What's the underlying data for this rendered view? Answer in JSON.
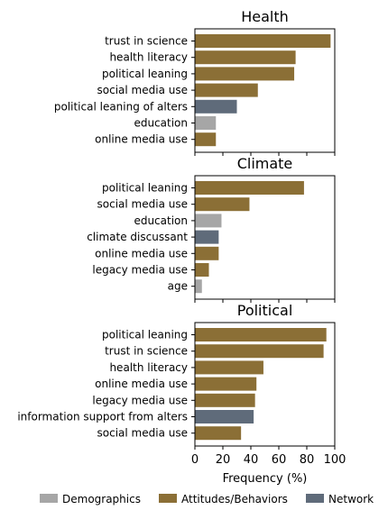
{
  "colors": {
    "Demographics": "#a6a6a6",
    "Attitudes/Behaviors": "#8b6f36",
    "Network": "#5f6b7a"
  },
  "legend": [
    "Demographics",
    "Attitudes/Behaviors",
    "Network"
  ],
  "xlabel": "Frequency (%)",
  "xticks": [
    "0",
    "20",
    "40",
    "60",
    "80",
    "100"
  ],
  "chart_data": [
    {
      "type": "bar",
      "title": "Health",
      "xlim": [
        0,
        100
      ],
      "bars": [
        {
          "label": "trust in science",
          "value": 97,
          "group": "Attitudes/Behaviors"
        },
        {
          "label": "health literacy",
          "value": 72,
          "group": "Attitudes/Behaviors"
        },
        {
          "label": "political leaning",
          "value": 71,
          "group": "Attitudes/Behaviors"
        },
        {
          "label": "social media use",
          "value": 45,
          "group": "Attitudes/Behaviors"
        },
        {
          "label": "political leaning of alters",
          "value": 30,
          "group": "Network"
        },
        {
          "label": "education",
          "value": 15,
          "group": "Demographics"
        },
        {
          "label": "online media use",
          "value": 15,
          "group": "Attitudes/Behaviors"
        }
      ]
    },
    {
      "type": "bar",
      "title": "Climate",
      "xlim": [
        0,
        100
      ],
      "bars": [
        {
          "label": "political leaning",
          "value": 78,
          "group": "Attitudes/Behaviors"
        },
        {
          "label": "social media use",
          "value": 39,
          "group": "Attitudes/Behaviors"
        },
        {
          "label": "education",
          "value": 19,
          "group": "Demographics"
        },
        {
          "label": "climate discussant",
          "value": 17,
          "group": "Network"
        },
        {
          "label": "online media use",
          "value": 17,
          "group": "Attitudes/Behaviors"
        },
        {
          "label": "legacy media use",
          "value": 10,
          "group": "Attitudes/Behaviors"
        },
        {
          "label": "age",
          "value": 5,
          "group": "Demographics"
        }
      ]
    },
    {
      "type": "bar",
      "title": "Political",
      "xlim": [
        0,
        100
      ],
      "bars": [
        {
          "label": "political leaning",
          "value": 94,
          "group": "Attitudes/Behaviors"
        },
        {
          "label": "trust in science",
          "value": 92,
          "group": "Attitudes/Behaviors"
        },
        {
          "label": "health literacy",
          "value": 49,
          "group": "Attitudes/Behaviors"
        },
        {
          "label": "online media use",
          "value": 44,
          "group": "Attitudes/Behaviors"
        },
        {
          "label": "legacy media use",
          "value": 43,
          "group": "Attitudes/Behaviors"
        },
        {
          "label": "information support from alters",
          "value": 42,
          "group": "Network"
        },
        {
          "label": "social media use",
          "value": 33,
          "group": "Attitudes/Behaviors"
        }
      ]
    }
  ]
}
